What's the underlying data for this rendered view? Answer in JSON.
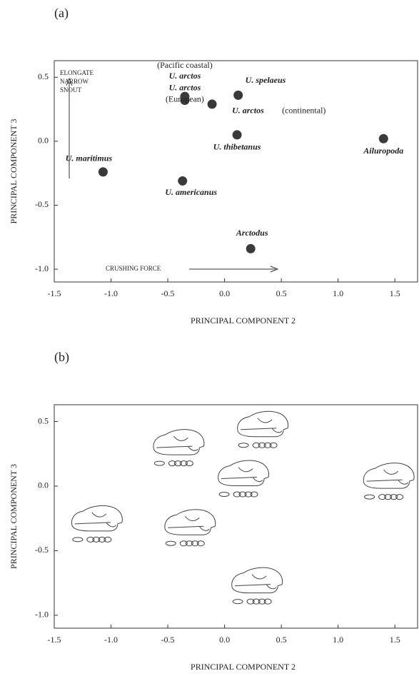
{
  "chart_data": [
    {
      "type": "scatter",
      "panel_label": "(a)",
      "xlabel": "PRINCIPAL COMPONENT 2",
      "ylabel": "PRINCIPAL COMPONENT 3",
      "labels": [
        "U. arctos",
        "U. arctos",
        "U. arctos",
        "U. spelaeus",
        "U. thibetanus",
        "Ailuropoda",
        "U. maritimus",
        "U. americanus",
        "Arctodus"
      ],
      "label_notes": [
        "(Pacific coastal)",
        "(European)",
        "(continental)",
        null,
        null,
        null,
        null,
        null,
        null
      ],
      "x": [
        -0.35,
        -0.35,
        -0.11,
        0.12,
        0.11,
        1.4,
        -1.07,
        -0.37,
        0.23
      ],
      "values": [
        0.35,
        0.32,
        0.29,
        0.36,
        0.05,
        0.02,
        -0.24,
        -0.31,
        -0.84
      ],
      "color": "#3a3a3a",
      "annotations": {
        "snout": [
          "ELONGATE",
          "NARROW",
          "SNOUT"
        ],
        "force": "CRUSHING FORCE"
      },
      "xlim": [
        -1.5,
        1.7
      ],
      "ylim": [
        -1.1,
        0.63
      ],
      "xticks": [
        -1.5,
        {
          "value": -1,
          "label": "-1.0"
        },
        -0.5,
        {
          "value": 0,
          "label": "0.0"
        },
        0.5,
        {
          "value": 1,
          "label": "1.0"
        },
        1.5
      ],
      "yticks": [
        0.5,
        {
          "value": 0,
          "label": "0.0"
        },
        -0.5,
        {
          "value": -1,
          "label": "-1.0"
        }
      ]
    },
    {
      "type": "skulls",
      "panel_label": "(b)",
      "xlabel": "PRINCIPAL COMPONENT 2",
      "ylabel": "PRINCIPAL COMPONENT 3",
      "x": [
        -0.41,
        0.33,
        0.16,
        1.44,
        -1.13,
        -0.31,
        0.28
      ],
      "values": [
        0.32,
        0.46,
        0.08,
        0.06,
        -0.27,
        -0.3,
        -0.75
      ],
      "color": "#444444",
      "xlim": [
        -1.5,
        1.7
      ],
      "ylim": [
        -1.1,
        0.63
      ],
      "xticks": [
        -1.5,
        {
          "value": -1,
          "label": "-1.0"
        },
        -0.5,
        {
          "value": 0,
          "label": "0.0"
        },
        0.5,
        {
          "value": 1,
          "label": "1.0"
        },
        1.5
      ],
      "yticks": [
        0.5,
        {
          "value": 0,
          "label": "0.0"
        },
        -0.5,
        {
          "value": -1,
          "label": "-1.0"
        }
      ]
    }
  ]
}
